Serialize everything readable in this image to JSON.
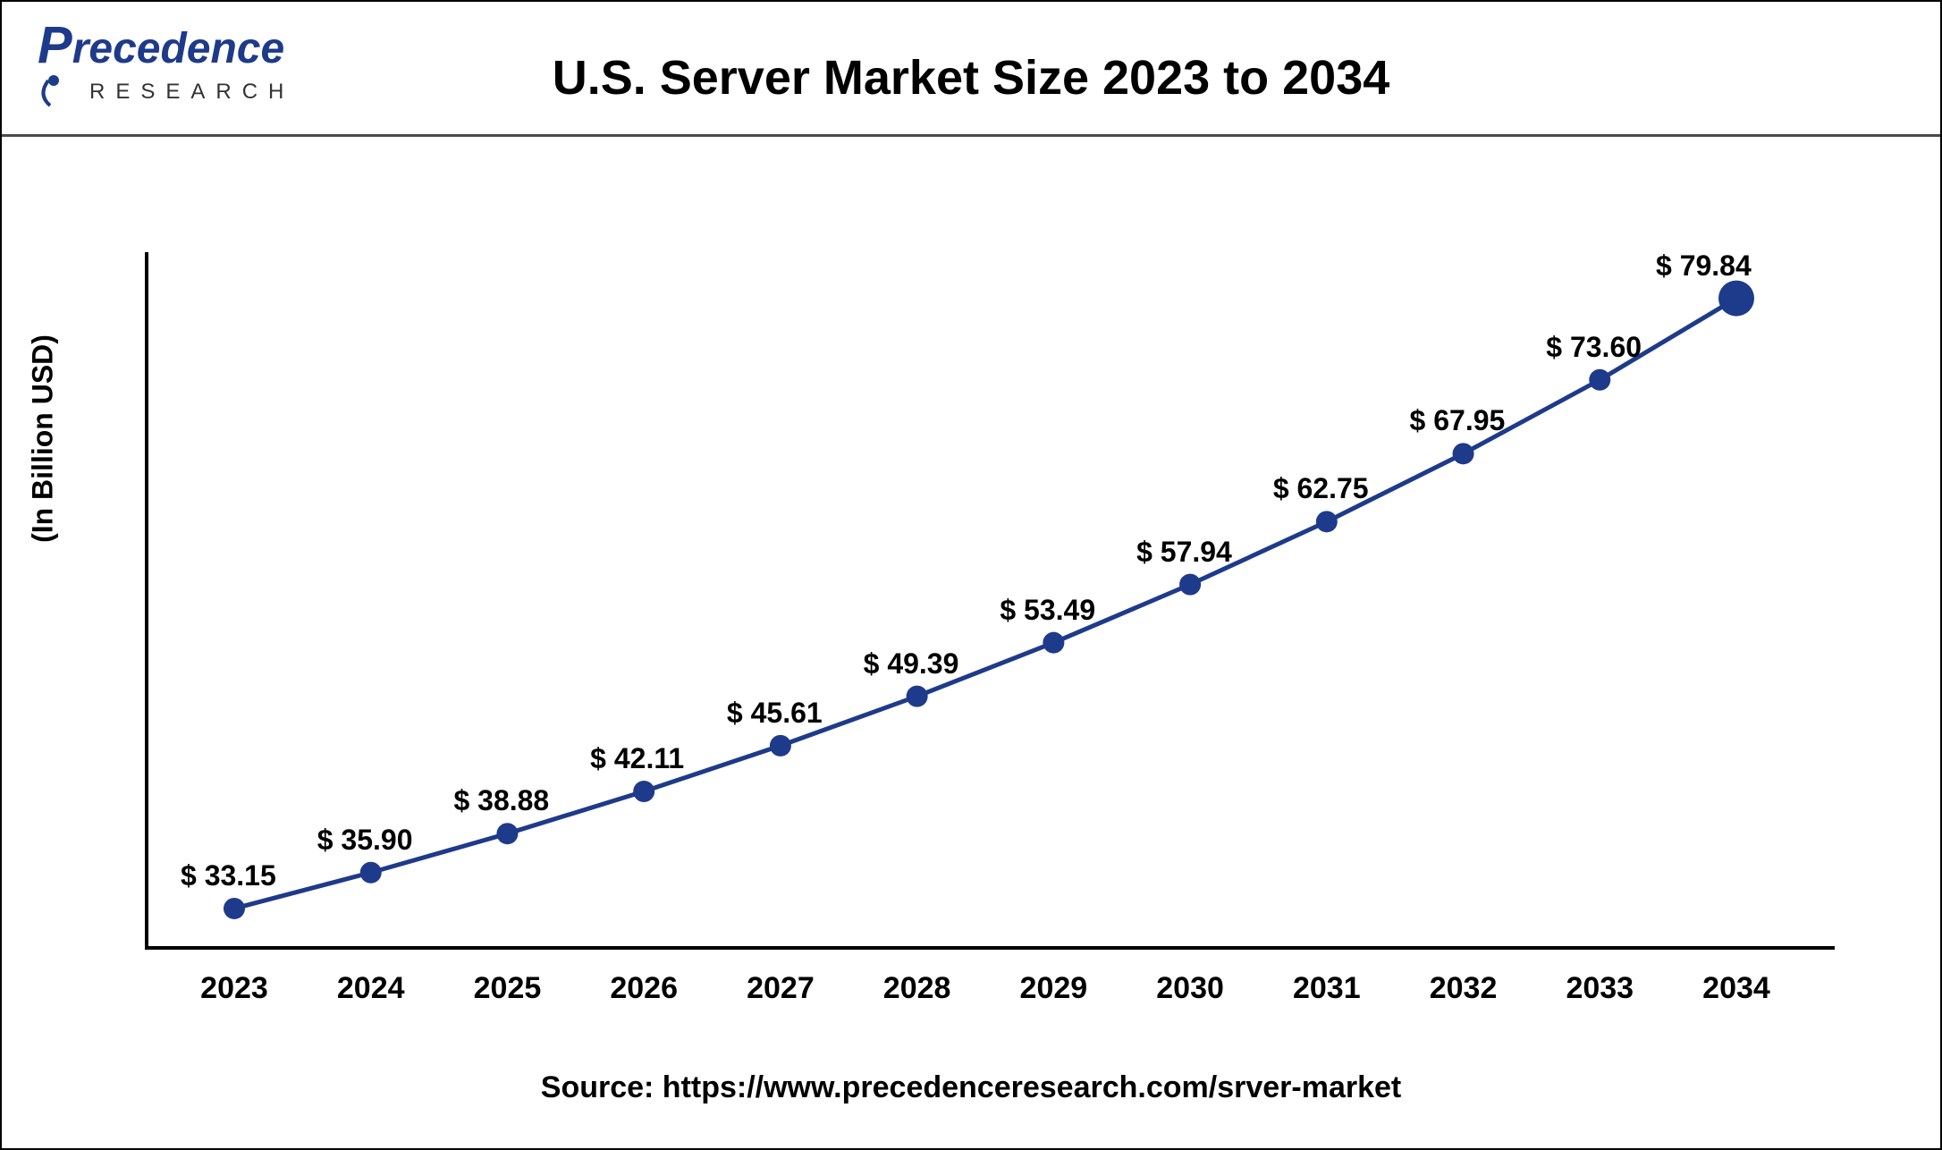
{
  "header": {
    "logo_top": "Precedence",
    "logo_bottom": "RESEARCH"
  },
  "chart": {
    "type": "line",
    "title": "U.S. Server Market Size 2023 to 2034",
    "y_axis_label": "(In Billion USD)",
    "years": [
      "2023",
      "2024",
      "2025",
      "2026",
      "2027",
      "2028",
      "2029",
      "2030",
      "2031",
      "2032",
      "2033",
      "2034"
    ],
    "values": [
      33.15,
      35.9,
      38.88,
      42.11,
      45.61,
      49.39,
      53.49,
      57.94,
      62.75,
      67.95,
      73.6,
      79.84
    ],
    "labels": [
      "$ 33.15",
      "$ 35.90",
      "$ 38.88",
      "$ 42.11",
      "$ 45.61",
      "$ 49.39",
      "$ 53.49",
      "$ 57.94",
      "$ 62.75",
      "$ 67.95",
      "$ 73.60",
      "$ 79.84"
    ],
    "line_color": "#1e3a8a",
    "marker_color": "#1e3a8a",
    "line_width": 5,
    "marker_radius": 12,
    "last_marker_radius": 20,
    "ylim": [
      30,
      82
    ],
    "background_color": "#ffffff",
    "axis_color": "#000000",
    "label_fontsize": 32,
    "title_fontsize": 54,
    "tick_fontsize": 34
  },
  "source": "Source: https://www.precedenceresearch.com/srver-market"
}
